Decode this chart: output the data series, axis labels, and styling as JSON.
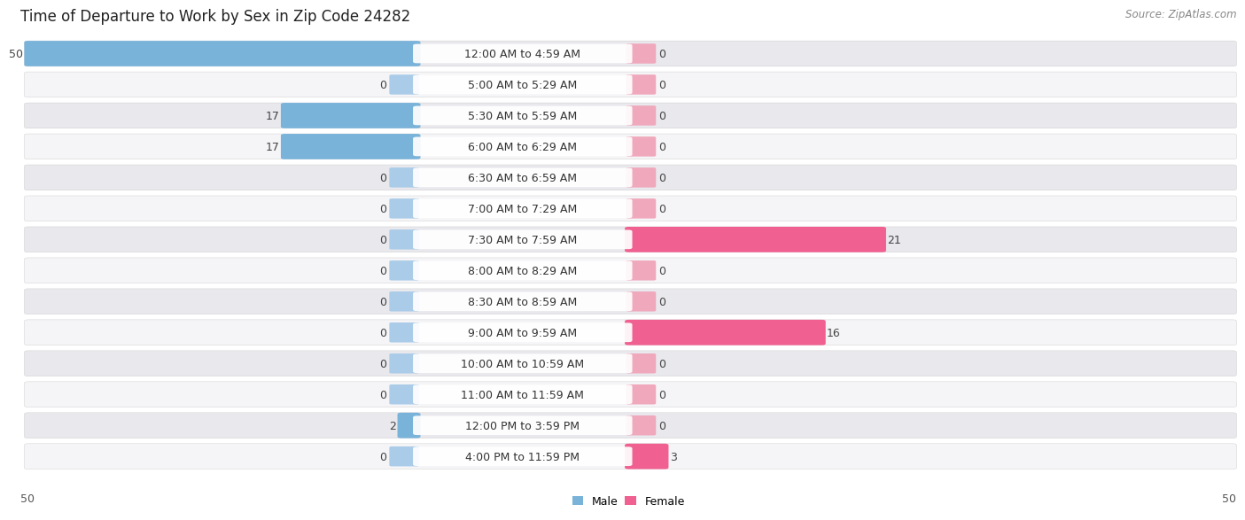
{
  "title": "Time of Departure to Work by Sex in Zip Code 24282",
  "source": "Source: ZipAtlas.com",
  "categories": [
    "12:00 AM to 4:59 AM",
    "5:00 AM to 5:29 AM",
    "5:30 AM to 5:59 AM",
    "6:00 AM to 6:29 AM",
    "6:30 AM to 6:59 AM",
    "7:00 AM to 7:29 AM",
    "7:30 AM to 7:59 AM",
    "8:00 AM to 8:29 AM",
    "8:30 AM to 8:59 AM",
    "9:00 AM to 9:59 AM",
    "10:00 AM to 10:59 AM",
    "11:00 AM to 11:59 AM",
    "12:00 PM to 3:59 PM",
    "4:00 PM to 11:59 PM"
  ],
  "male_values": [
    50,
    0,
    17,
    17,
    0,
    0,
    0,
    0,
    0,
    0,
    0,
    0,
    2,
    0
  ],
  "female_values": [
    0,
    0,
    0,
    0,
    0,
    0,
    21,
    0,
    0,
    16,
    0,
    0,
    0,
    3
  ],
  "male_color": "#7ab3d9",
  "male_stub_color": "#aacce8",
  "female_color": "#f06090",
  "female_stub_color": "#f0a8bc",
  "axis_max": 50,
  "row_bg_light": "#f5f5f7",
  "row_bg_dark": "#e8e8ed",
  "title_fontsize": 12,
  "label_fontsize": 9,
  "tick_fontsize": 9,
  "source_fontsize": 8.5,
  "value_fontsize": 9
}
